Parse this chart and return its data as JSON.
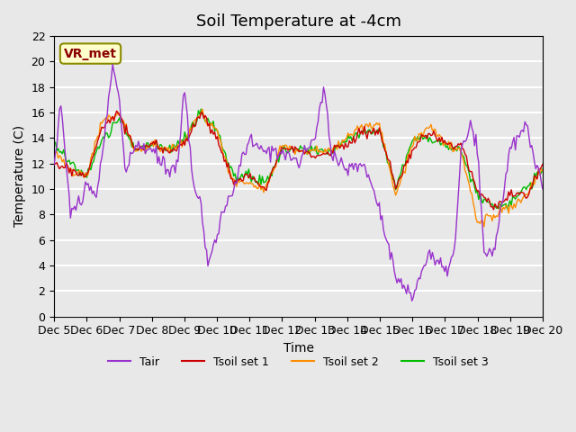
{
  "title": "Soil Temperature at -4cm",
  "xlabel": "Time",
  "ylabel": "Temperature (C)",
  "ylim": [
    0,
    22
  ],
  "yticks": [
    0,
    2,
    4,
    6,
    8,
    10,
    12,
    14,
    16,
    18,
    20,
    22
  ],
  "xtick_labels": [
    "Dec 5",
    "Dec 6",
    "Dec 7",
    "Dec 8",
    "Dec 9",
    "Dec 10",
    "Dec 11",
    "Dec 12",
    "Dec 13",
    "Dec 14",
    "Dec 15",
    "Dec 16",
    "Dec 17",
    "Dec 18",
    "Dec 19",
    "Dec 20"
  ],
  "annotation_text": "VR_met",
  "annotation_color": "#8B0000",
  "annotation_bg": "#FFFFCC",
  "bg_color": "#E8E8E8",
  "plot_bg": "#E8E8E8",
  "colors": {
    "Tair": "#9932CC",
    "Tsoil_set1": "#CC0000",
    "Tsoil_set2": "#FF8C00",
    "Tsoil_set3": "#00BB00"
  },
  "legend_labels": [
    "Tair",
    "Tsoil set 1",
    "Tsoil set 2",
    "Tsoil set 3"
  ],
  "title_fontsize": 13,
  "axis_fontsize": 10,
  "tick_fontsize": 9
}
